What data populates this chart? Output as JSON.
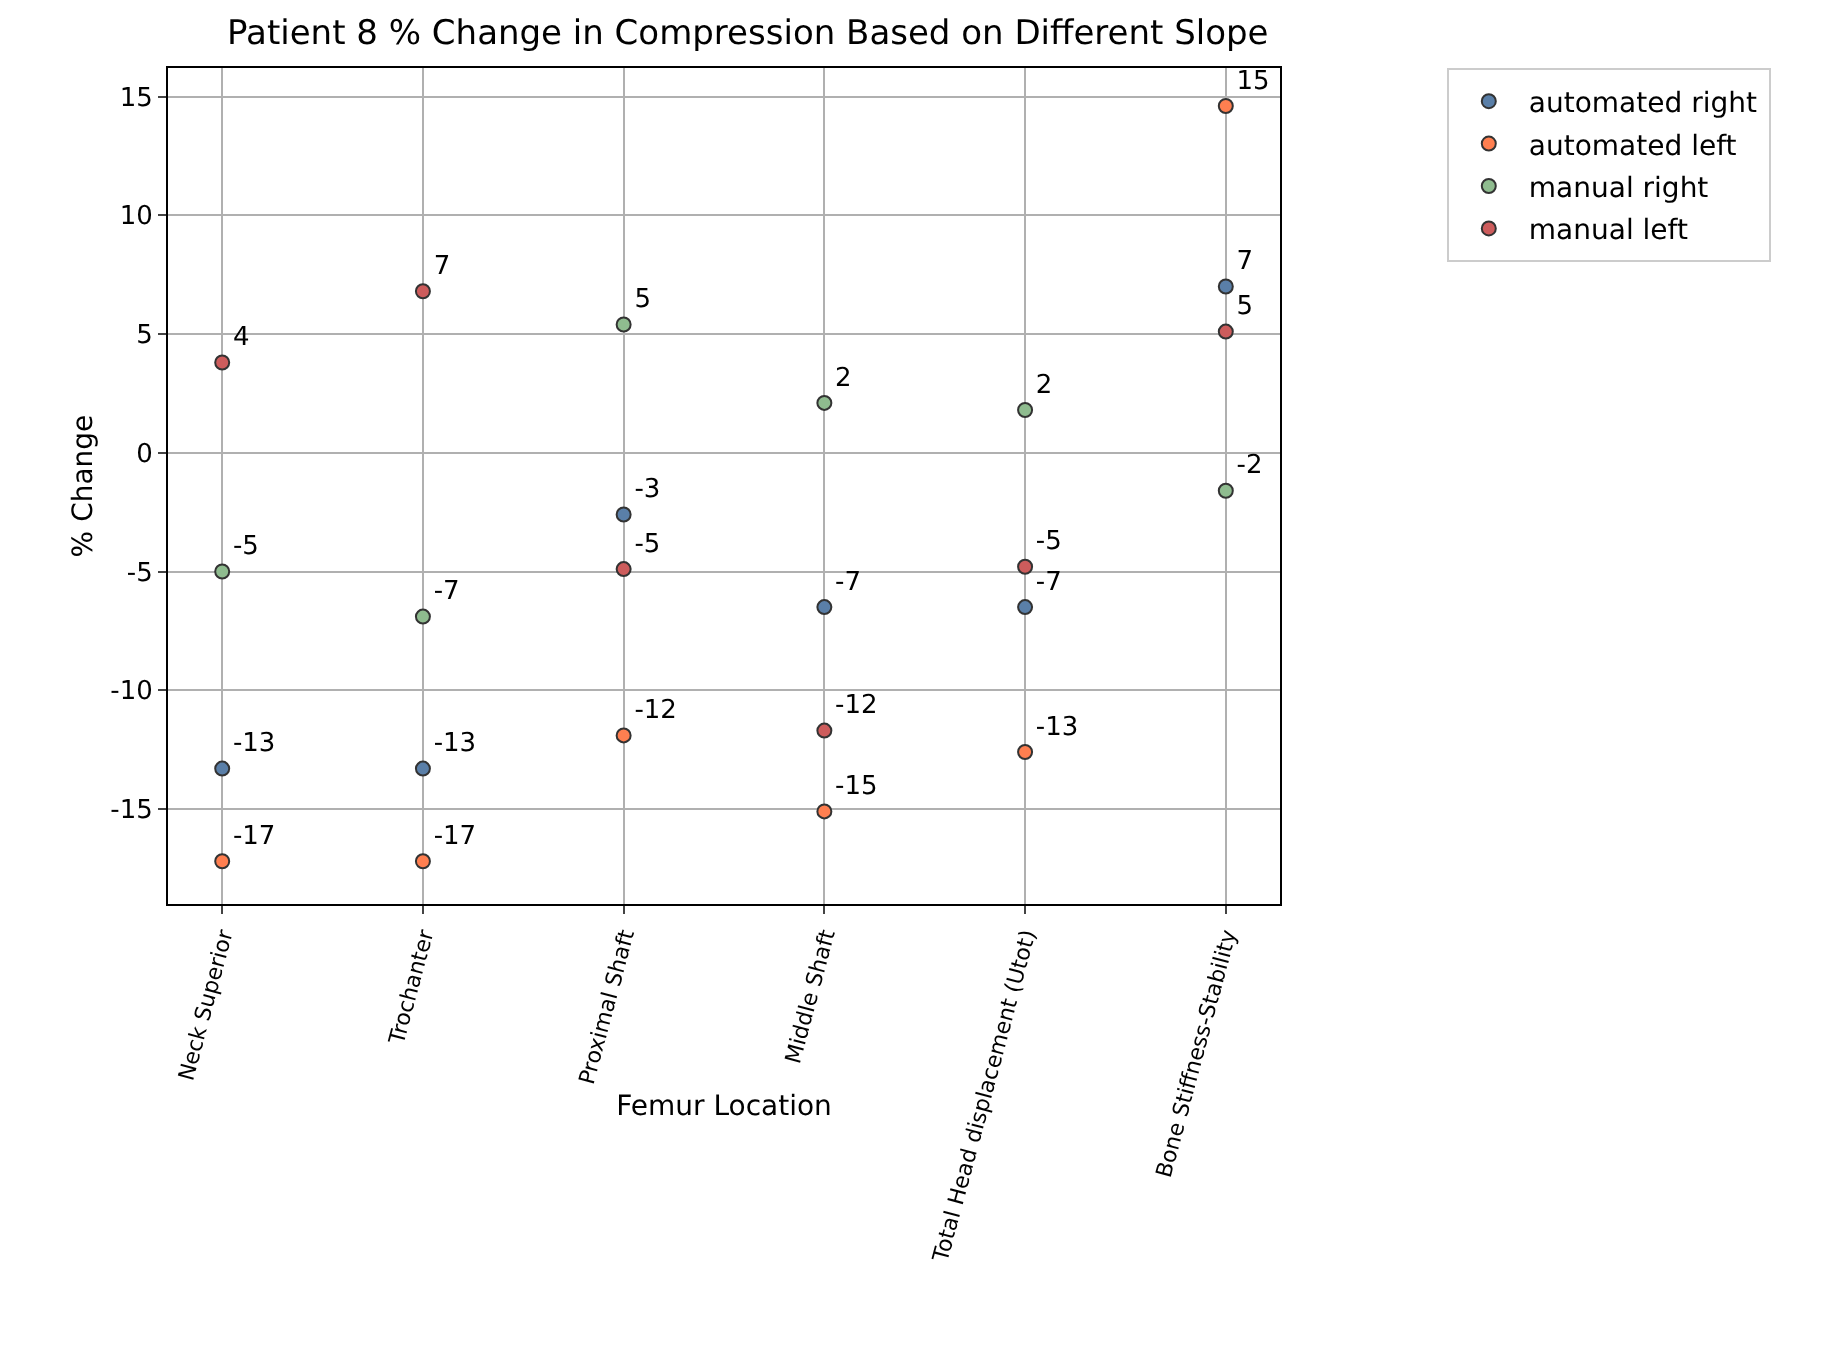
{
  "chart_data": {
    "type": "scatter",
    "title": "Patient 8 % Change in Compression Based on Different Slope",
    "xlabel": "Femur Location",
    "ylabel": "% Change",
    "categories": [
      "Neck Superior",
      "Trochanter",
      "Proximal Shaft",
      "Middle Shaft",
      "Total Head displacement (Utot)",
      "Bone Stiffness-Stability"
    ],
    "series": [
      {
        "name": "automated right",
        "color": "#5a7fa8",
        "values": [
          -13.3,
          -13.3,
          -2.6,
          -6.5,
          -6.5,
          7.0
        ],
        "value_labels": [
          "-13",
          "-13",
          "-3",
          "-7",
          "-7",
          "7"
        ]
      },
      {
        "name": "automated left",
        "color": "#ff7f50",
        "values": [
          -17.2,
          -17.2,
          -11.9,
          -15.1,
          -12.6,
          14.6
        ],
        "value_labels": [
          "-17",
          "-17",
          "-12",
          "-15",
          "-13",
          "15"
        ]
      },
      {
        "name": "manual right",
        "color": "#8fbc8f",
        "values": [
          -5.0,
          -6.9,
          5.4,
          2.1,
          1.8,
          -1.6
        ],
        "value_labels": [
          "-5",
          "-7",
          "5",
          "2",
          "2",
          "-2"
        ]
      },
      {
        "name": "manual left",
        "color": "#cd5c5c",
        "values": [
          3.8,
          6.8,
          -4.9,
          -11.7,
          -4.8,
          5.1
        ],
        "value_labels": [
          "4",
          "7",
          "-5",
          "-12",
          "-5",
          "5"
        ]
      }
    ],
    "ylim": [
      -19,
      16.2
    ],
    "yticks": [
      -15,
      -10,
      -5,
      0,
      5,
      10,
      15
    ],
    "grid": true,
    "legend": "top right",
    "marker": "circle"
  }
}
